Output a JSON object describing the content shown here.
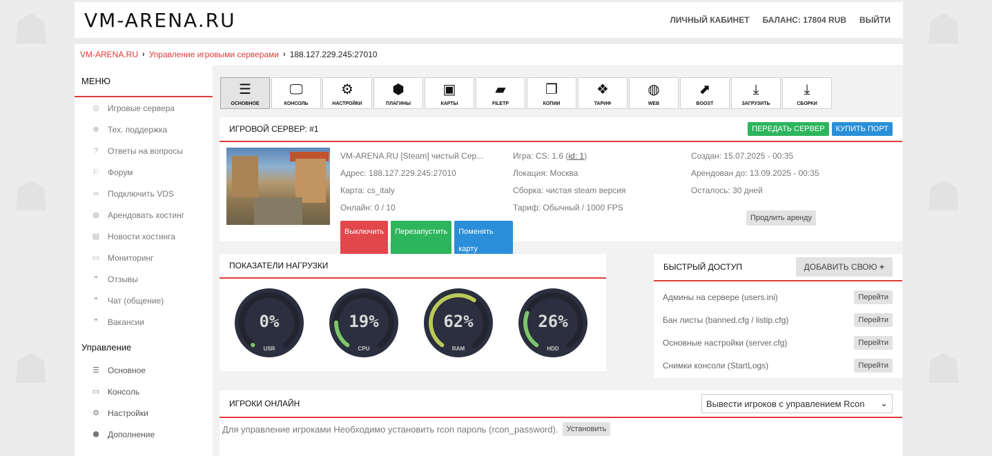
{
  "header": {
    "logo": "VM-ARENA.RU",
    "nav": [
      "ЛИЧНЫЙ КАБИНЕТ",
      "БАЛАНС: 17804 RUB",
      "ВЫЙТИ"
    ]
  },
  "breadcrumb": {
    "home": "VM-ARENA.RU",
    "section": "Управление игровыми серверами",
    "current": "188.127.229.245:27010"
  },
  "sidebar": {
    "menu_title": "МЕНЮ",
    "menu_items": [
      {
        "label": "Игровые сервера",
        "icon": "gamepad-icon"
      },
      {
        "label": "Тех. поддержка",
        "icon": "lifebuoy-icon"
      },
      {
        "label": "Ответы на вопросы",
        "icon": "question-icon"
      },
      {
        "label": "Форум",
        "icon": "forum-icon"
      },
      {
        "label": "Подключить VDS",
        "icon": "link-icon"
      },
      {
        "label": "Арендовать хостинг",
        "icon": "globe-icon"
      },
      {
        "label": "Новости хостинга",
        "icon": "news-icon"
      },
      {
        "label": "Мониторинг",
        "icon": "monitor-icon"
      },
      {
        "label": "Отзывы",
        "icon": "comments-icon"
      },
      {
        "label": "Чат (общение)",
        "icon": "chat-icon"
      },
      {
        "label": "Вакансии",
        "icon": "vacancy-icon"
      }
    ],
    "manage_title": "Управление",
    "manage_items": [
      {
        "label": "Основное",
        "icon": "bars-icon"
      },
      {
        "label": "Консоль",
        "icon": "monitor-icon"
      },
      {
        "label": "Настройки",
        "icon": "gear-icon"
      },
      {
        "label": "Дополнение",
        "icon": "cubes-icon"
      }
    ]
  },
  "toolbar": [
    {
      "label": "ОСНОВНОЕ",
      "icon": "bars-icon",
      "glyph": "☰"
    },
    {
      "label": "КОНСОЛЬ",
      "icon": "monitor-icon",
      "glyph": "🖵"
    },
    {
      "label": "НАСТРОЙКИ",
      "icon": "gear-icon",
      "glyph": "⚙"
    },
    {
      "label": "ПЛАГИНЫ",
      "icon": "cubes-icon",
      "glyph": "⬢"
    },
    {
      "label": "КАРТЫ",
      "icon": "image-icon",
      "glyph": "▣"
    },
    {
      "label": "FILETP",
      "icon": "folder-icon",
      "glyph": "▰"
    },
    {
      "label": "КОПИИ",
      "icon": "copy-icon",
      "glyph": "❐"
    },
    {
      "label": "ТАРИФ",
      "icon": "dropbox-icon",
      "glyph": "❖"
    },
    {
      "label": "WEB",
      "icon": "globe-icon",
      "glyph": "◍"
    },
    {
      "label": "BOOST",
      "icon": "chart-icon",
      "glyph": "⬈"
    },
    {
      "label": "ЗАГРУЗИТЬ",
      "icon": "download-icon",
      "glyph": "⤓"
    },
    {
      "label": "СБОРКИ",
      "icon": "download-icon",
      "glyph": "⤓"
    }
  ],
  "server": {
    "title": "ИГРОВОЙ СЕРВЕР: #1",
    "transfer_label": "ПЕРЕДАТЬ СЕРВЕР",
    "buy_port_label": "КУПИТЬ ПОРТ",
    "name": "VM-ARENA.RU [Steam] чистый Сер...",
    "address": "Адрес: 188.127.229.245:27010",
    "map": "Карта: cs_italy",
    "online": "Онлайн: 0 / 10",
    "game_prefix": "Игра: CS: 1.6 (",
    "game_id": "id: 1",
    "game_suffix": ")",
    "location": "Локация: Москва",
    "build": "Сборка: чистая steam версия",
    "tariff": "Тариф: Обычный / 1000 FPS",
    "created": "Создан: 15.07.2025 - 00:35",
    "rented_until": "Арендован до: 13.09.2025 - 00:35",
    "remaining": "Осталось: 30 дней",
    "btn_off": "Выключить",
    "btn_restart": "Перезапустить",
    "btn_change_map": "Поменять карту",
    "btn_extend": "Продлить аренду"
  },
  "load": {
    "title": "ПОКАЗАТЕЛИ НАГРУЗКИ",
    "gauges": [
      {
        "label": "USR",
        "value": 0,
        "text": "0%",
        "color": "#7dc46a"
      },
      {
        "label": "CPU",
        "value": 19,
        "text": "19%",
        "color": "#7dc46a"
      },
      {
        "label": "RAM",
        "value": 62,
        "text": "62%",
        "color": "#b9c85a"
      },
      {
        "label": "HDD",
        "value": 26,
        "text": "26%",
        "color": "#7dc46a"
      }
    ]
  },
  "quick": {
    "title": "БЫСТРЫЙ ДОСТУП",
    "add_label": "ДОБАВИТЬ СВОЮ",
    "items": [
      {
        "label": "Админы на сервере (users.ini)",
        "btn": "Перейти"
      },
      {
        "label": "Бан листы (banned.cfg / listip.cfg)",
        "btn": "Перейти"
      },
      {
        "label": "Основные настройки (server.cfg)",
        "btn": "Перейти"
      },
      {
        "label": "Снимки консоли (StartLogs)",
        "btn": "Перейти"
      }
    ]
  },
  "players": {
    "title": "ИГРОКИ ОНЛАЙН",
    "select_value": "Вывести игроков с управлением Rcon",
    "message": "Для управление игроками Необходимо установить rcon пароль (rcon_password).",
    "install_label": "Установить"
  }
}
